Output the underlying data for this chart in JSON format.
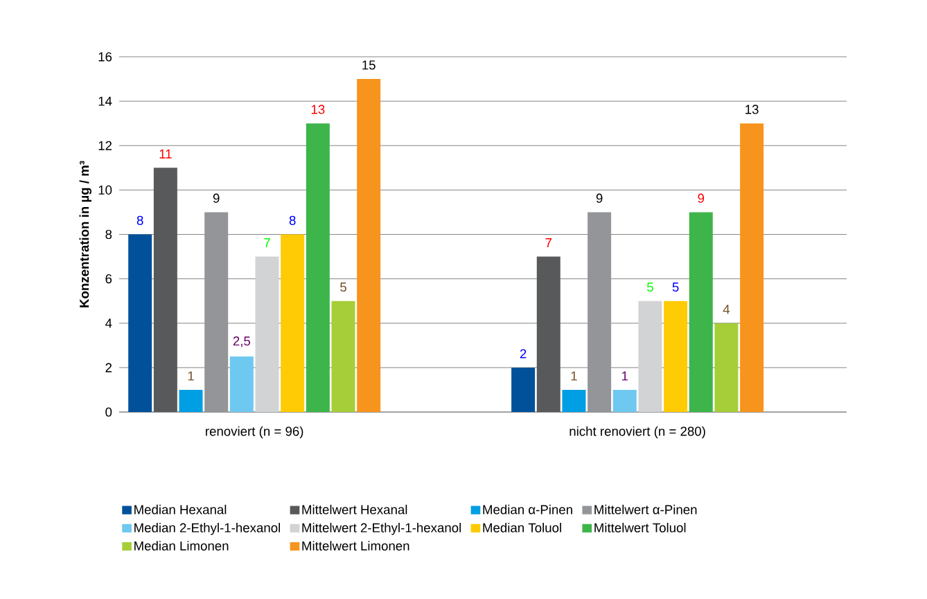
{
  "chart_data": {
    "type": "bar",
    "ylabel": "Konzentration in µg / m³",
    "categories": [
      "renoviert (n = 96)",
      "nicht renoviert (n = 280)"
    ],
    "series": [
      {
        "name": "Median Hexanal",
        "color": "#00509a",
        "values": [
          8,
          2
        ],
        "value_labels": [
          "8",
          "2"
        ]
      },
      {
        "name": "Mittelwert Hexanal",
        "color": "#58595b",
        "values": [
          11,
          7
        ],
        "value_labels": [
          "11",
          "7"
        ]
      },
      {
        "name": "Median α-Pinen",
        "color": "#009fe3",
        "values": [
          1,
          1
        ],
        "value_labels": [
          "1",
          "1"
        ]
      },
      {
        "name": "Mittelwert α-Pinen",
        "color": "#939598",
        "values": [
          9,
          9
        ],
        "value_labels": [
          "9",
          "9"
        ]
      },
      {
        "name": "Median 2-Ethyl-1-hexanol",
        "color": "#6fc8f0",
        "values": [
          2.5,
          1
        ],
        "value_labels": [
          "2,5",
          "1"
        ]
      },
      {
        "name": "Mittelwert 2-Ethyl-1-hexanol",
        "color": "#d1d3d4",
        "values": [
          7,
          5
        ],
        "value_labels": [
          "7",
          "5"
        ]
      },
      {
        "name": "Median Toluol",
        "color": "#ffcb05",
        "values": [
          8,
          5
        ],
        "value_labels": [
          "8",
          "5"
        ]
      },
      {
        "name": "Mittelwert Toluol",
        "color": "#3db54a",
        "values": [
          13,
          9
        ],
        "value_labels": [
          "13",
          "9"
        ]
      },
      {
        "name": "Median Limonen",
        "color": "#a6ce39",
        "values": [
          5,
          4
        ],
        "value_labels": [
          "5",
          "4"
        ]
      },
      {
        "name": "Mittelwert Limonen",
        "color": "#f7941d",
        "values": [
          15,
          13
        ],
        "value_labels": [
          "15",
          "13"
        ]
      }
    ],
    "ylim": [
      0,
      16
    ],
    "yticks": [
      0,
      2,
      4,
      6,
      8,
      10,
      12,
      14,
      16
    ],
    "grid": "y",
    "legend": "bottom"
  }
}
